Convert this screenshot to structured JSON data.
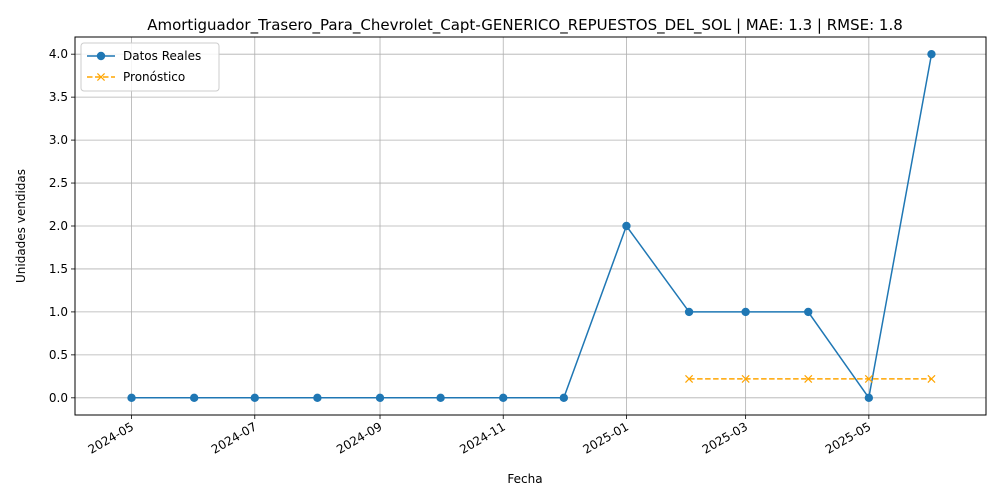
{
  "chart_data": {
    "type": "line",
    "title": "Amortiguador_Trasero_Para_Chevrolet_Capt-GENERICO_REPUESTOS_DEL_SOL | MAE: 1.3 | RMSE: 1.8",
    "xlabel": "Fecha",
    "ylabel": "Unidades vendidas",
    "x_range": [
      "2024-04-03",
      "2025-06-28"
    ],
    "ylim": [
      -0.2,
      4.2
    ],
    "x_ticks": [
      "2024-05-01",
      "2024-07-01",
      "2024-09-01",
      "2024-11-01",
      "2025-01-01",
      "2025-03-01",
      "2025-05-01"
    ],
    "x_tick_labels": [
      "2024-05",
      "2024-07",
      "2024-09",
      "2024-11",
      "2025-01",
      "2025-03",
      "2025-05"
    ],
    "y_ticks": [
      0.0,
      0.5,
      1.0,
      1.5,
      2.0,
      2.5,
      3.0,
      3.5,
      4.0
    ],
    "y_tick_labels": [
      "0.0",
      "0.5",
      "1.0",
      "1.5",
      "2.0",
      "2.5",
      "3.0",
      "3.5",
      "4.0"
    ],
    "grid": true,
    "legend_position": "top-left",
    "series": [
      {
        "name": "Datos Reales",
        "color": "#1f77b4",
        "marker": "circle",
        "line_style": "solid",
        "x": [
          "2024-05-01",
          "2024-06-01",
          "2024-07-01",
          "2024-08-01",
          "2024-09-01",
          "2024-10-01",
          "2024-11-01",
          "2024-12-01",
          "2025-01-01",
          "2025-02-01",
          "2025-03-01",
          "2025-04-01",
          "2025-05-01",
          "2025-06-01"
        ],
        "y": [
          0,
          0,
          0,
          0,
          0,
          0,
          0,
          0,
          2,
          1,
          1,
          1,
          0,
          4
        ]
      },
      {
        "name": "Pronóstico",
        "color": "#ffa500",
        "marker": "x",
        "line_style": "dashed",
        "x": [
          "2025-02-01",
          "2025-03-01",
          "2025-04-01",
          "2025-05-01",
          "2025-06-01"
        ],
        "y": [
          0.22,
          0.22,
          0.22,
          0.22,
          0.22
        ]
      }
    ]
  }
}
